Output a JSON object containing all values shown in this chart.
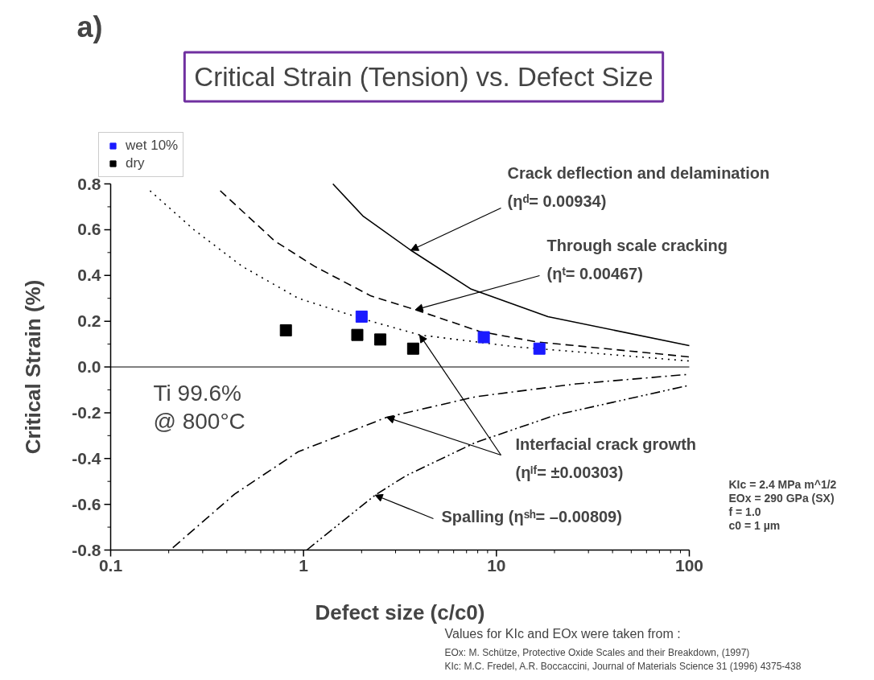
{
  "chart_data": {
    "type": "line",
    "title": "Critical Strain (Tension) vs. Defect Size",
    "xlabel": "Defect size (c/c0)",
    "ylabel": "Critical Strain (%)",
    "log": "x",
    "xlim": [
      0.1,
      100
    ],
    "xticks": [
      0.1,
      1,
      10,
      100
    ],
    "ylim": [
      -0.8,
      0.8
    ],
    "yticks": [
      -0.8,
      -0.6,
      -0.4,
      -0.2,
      {
        "value": 0,
        "label": "0.0"
      },
      0.2,
      0.4,
      0.6,
      0.8
    ],
    "grid": false,
    "legend": "top left",
    "ref_lines": [
      {
        "axis": "y",
        "value": 0,
        "color": "#000000",
        "line_style": "solid"
      }
    ],
    "series": [
      {
        "color": "#000000",
        "line_style": "solid",
        "x": [
          1.42,
          2.03,
          3.6,
          7.4,
          18.5,
          100
        ],
        "values": [
          0.8,
          0.66,
          0.51,
          0.34,
          0.22,
          0.093
        ]
      },
      {
        "color": "#000000",
        "line_style": "dashed",
        "x": [
          0.37,
          0.71,
          1.14,
          2.24,
          3.8,
          8.2,
          16,
          100
        ],
        "values": [
          0.77,
          0.55,
          0.44,
          0.31,
          0.25,
          0.155,
          0.11,
          0.044
        ]
      },
      {
        "color": "#000000",
        "line_style": "dotted",
        "x": [
          0.16,
          0.27,
          0.48,
          0.94,
          2.03,
          4.0,
          12.6,
          100
        ],
        "values": [
          0.77,
          0.6,
          0.44,
          0.3,
          0.21,
          0.14,
          0.088,
          0.026
        ]
      },
      {
        "color": "#000000",
        "line_style": "dashdot",
        "x": [
          0.21,
          0.44,
          0.94,
          2.7,
          7.8,
          25.9,
          100
        ],
        "values": [
          -0.79,
          -0.555,
          -0.37,
          -0.22,
          -0.13,
          -0.074,
          -0.032
        ]
      },
      {
        "color": "#000000",
        "line_style": "dashdotdot",
        "x": [
          1.04,
          1.85,
          2.35,
          3.4,
          7.8,
          20.3,
          100
        ],
        "values": [
          -0.8,
          -0.63,
          -0.56,
          -0.475,
          -0.33,
          -0.21,
          -0.08
        ]
      },
      {
        "type": "scatter",
        "name": "wet 10%",
        "color": "#1a1aff",
        "marker": "square",
        "x": [
          2.0,
          8.6,
          16.7
        ],
        "values": [
          0.22,
          0.13,
          0.08
        ]
      },
      {
        "type": "scatter",
        "name": "dry",
        "color": "#000000",
        "marker": "square",
        "x": [
          0.81,
          1.9,
          2.5,
          3.7
        ],
        "values": [
          0.16,
          0.14,
          0.12,
          0.08
        ]
      }
    ],
    "annotations": [
      "Crack deflection and delamination",
      {
        "text": "(ηᵈ= 0.00934)",
        "x": 3.6,
        "y": 0.51
      },
      "Through scale cracking",
      {
        "text": "(ηᵗ= 0.00467)",
        "x": 3.8,
        "y": 0.25
      },
      {
        "text": "Interfacial crack growth",
        "x": 2.7,
        "y": -0.22
      },
      {
        "text": "(ηⁱᶠ= ±0.00303)",
        "x": 4.0,
        "y": 0.14
      },
      {
        "text": "Spalling (ηˢʰ= –0.00809)",
        "x": 2.35,
        "y": -0.56
      },
      "a)",
      "Ti 99.6%",
      "@ 800°C",
      "KIc   = 2.4 MPa m^1/2",
      "EOx = 290 GPa (SX)",
      "f     = 1.0",
      "c0   = 1 µm",
      "Values for KIc and EOx were taken from :",
      "EOx: M. Schütze, Protective Oxide Scales and their Breakdown, (1997)",
      "KIc: M.C. Fredel, A.R. Boccaccini, Journal of Materials Science 31 (1996) 4375-438"
    ]
  }
}
